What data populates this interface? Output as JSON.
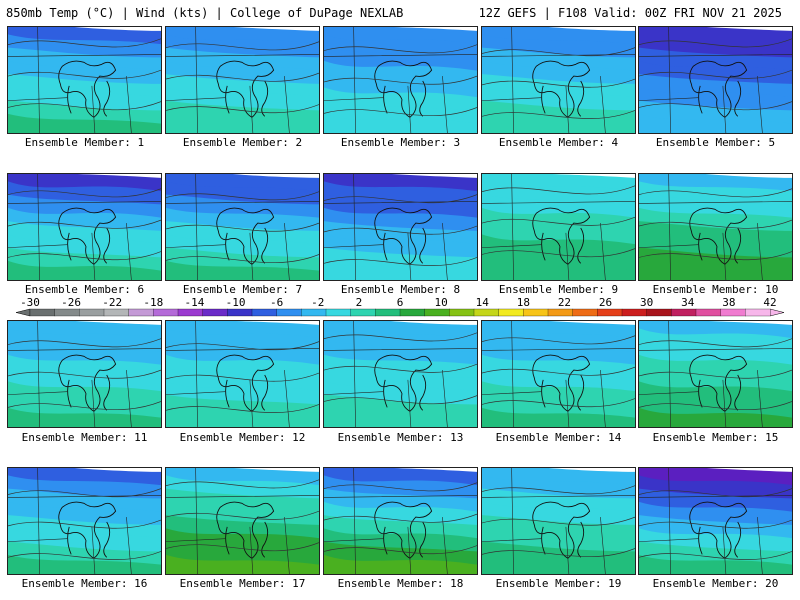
{
  "header": {
    "left": "850mb Temp (°C) | Wind (kts) | College of DuPage NEXLAB",
    "right": "12Z GEFS | F108 Valid: 00Z FRI NOV 21 2025"
  },
  "colorbar": {
    "labels": [
      "-30",
      "-26",
      "-22",
      "-18",
      "-14",
      "-10",
      "-6",
      "-2",
      "2",
      "6",
      "10",
      "14",
      "18",
      "22",
      "26",
      "30",
      "34",
      "38",
      "42"
    ],
    "colors": [
      "#6a7070",
      "#848a8a",
      "#9a9fa0",
      "#b3b6b7",
      "#c49ad6",
      "#b46ad8",
      "#9b3ad0",
      "#6a2bc8",
      "#3a34c8",
      "#2f5fe0",
      "#2f8ff0",
      "#33b8f0",
      "#37d8e0",
      "#2ed4b0",
      "#22be7c",
      "#28a83c",
      "#4ab020",
      "#86c214",
      "#c4d61a",
      "#f2ea20",
      "#f7c418",
      "#f39a16",
      "#ee6c16",
      "#e5401a",
      "#cc1e1e",
      "#a8141c",
      "#c02060",
      "#e04fa0",
      "#f07bd0",
      "#f7b6ea"
    ]
  },
  "panels": [
    {
      "label": "Ensemble Member: 1",
      "theme": [
        0.2,
        0.55
      ]
    },
    {
      "label": "Ensemble Member: 2",
      "theme": [
        0.25,
        0.5
      ]
    },
    {
      "label": "Ensemble Member: 3",
      "theme": [
        0.22,
        0.45
      ]
    },
    {
      "label": "Ensemble Member: 4",
      "theme": [
        0.22,
        0.52
      ]
    },
    {
      "label": "Ensemble Member: 5",
      "theme": [
        0.05,
        0.35
      ]
    },
    {
      "label": "Ensemble Member: 6",
      "theme": [
        0.1,
        0.6
      ]
    },
    {
      "label": "Ensemble Member: 7",
      "theme": [
        0.15,
        0.55
      ]
    },
    {
      "label": "Ensemble Member: 8",
      "theme": [
        0.1,
        0.45
      ]
    },
    {
      "label": "Ensemble Member: 9",
      "theme": [
        0.4,
        0.6
      ]
    },
    {
      "label": "Ensemble Member: 10",
      "theme": [
        0.35,
        0.7
      ]
    },
    {
      "label": "Ensemble Member: 11",
      "theme": [
        0.3,
        0.55
      ]
    },
    {
      "label": "Ensemble Member: 12",
      "theme": [
        0.3,
        0.5
      ]
    },
    {
      "label": "Ensemble Member: 13",
      "theme": [
        0.3,
        0.5
      ]
    },
    {
      "label": "Ensemble Member: 14",
      "theme": [
        0.3,
        0.55
      ]
    },
    {
      "label": "Ensemble Member: 15",
      "theme": [
        0.35,
        0.65
      ]
    },
    {
      "label": "Ensemble Member: 16",
      "theme": [
        0.2,
        0.55
      ]
    },
    {
      "label": "Ensemble Member: 17",
      "theme": [
        0.35,
        0.75
      ]
    },
    {
      "label": "Ensemble Member: 18",
      "theme": [
        0.15,
        0.75
      ]
    },
    {
      "label": "Ensemble Member: 19",
      "theme": [
        0.3,
        0.6
      ]
    },
    {
      "label": "Ensemble Member: 20",
      "theme": [
        0.02,
        0.6
      ]
    }
  ]
}
